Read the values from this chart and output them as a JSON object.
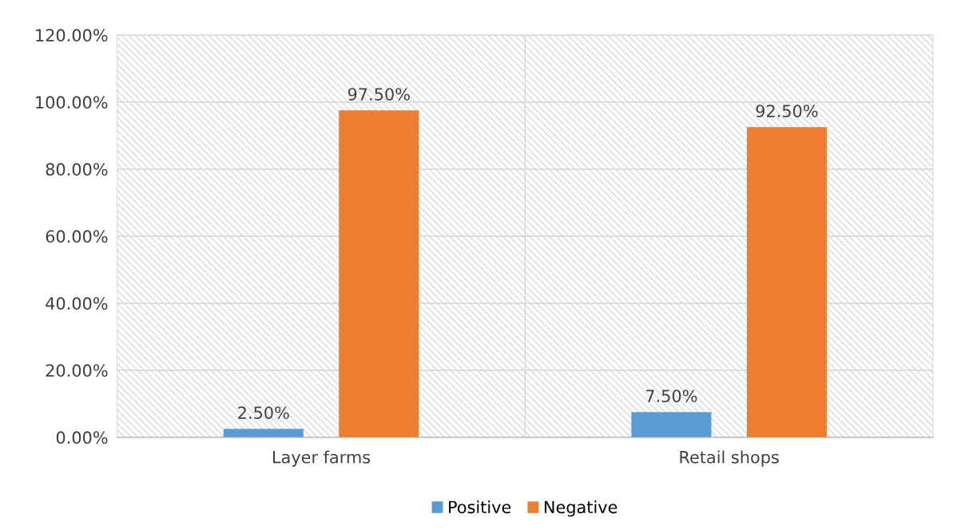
{
  "chart_data": {
    "type": "bar",
    "categories": [
      "Layer farms",
      "Retail shops"
    ],
    "series": [
      {
        "name": "Positive",
        "color": "#5b9bd5",
        "values": [
          2.5,
          7.5
        ],
        "value_labels": [
          "2.50%",
          "7.50%"
        ]
      },
      {
        "name": "Negative",
        "color": "#ed7d31",
        "values": [
          97.5,
          92.5
        ],
        "value_labels": [
          "97.50%",
          "92.50%"
        ]
      }
    ],
    "ylim": [
      0,
      120
    ],
    "yticks": [
      {
        "value": 0,
        "label": "0.00%"
      },
      {
        "value": 20,
        "label": "20.00%"
      },
      {
        "value": 40,
        "label": "40.00%"
      },
      {
        "value": 60,
        "label": "60.00%"
      },
      {
        "value": 80,
        "label": "80.00%"
      },
      {
        "value": 100,
        "label": "100.00%"
      },
      {
        "value": 120,
        "label": "120.00%"
      }
    ],
    "grid": true,
    "legend": "bottom"
  }
}
